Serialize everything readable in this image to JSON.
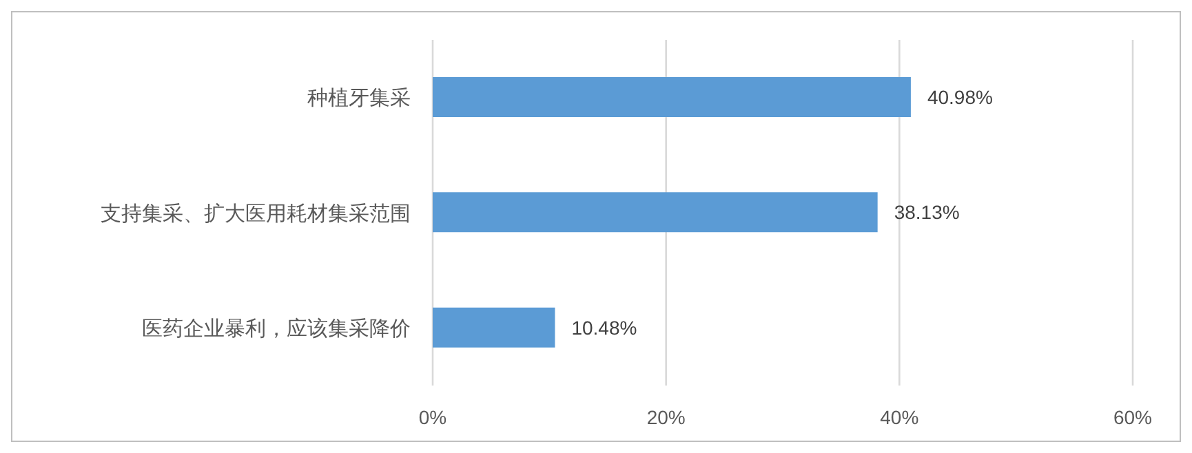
{
  "chart_data": {
    "type": "bar",
    "orientation": "horizontal",
    "categories": [
      "种植牙集采",
      "支持集采、扩大医用耗材集采范围",
      "医药企业暴利，应该集采降价"
    ],
    "values": [
      40.98,
      38.13,
      10.48
    ],
    "value_labels": [
      "40.98%",
      "38.13%",
      "10.48%"
    ],
    "color": "#5b9bd5",
    "xlim": [
      0,
      60
    ],
    "xticks": [
      {
        "value": 0,
        "label": "0%"
      },
      {
        "value": 20,
        "label": "20%"
      },
      {
        "value": 40,
        "label": "40%"
      },
      {
        "value": 60,
        "label": "60%"
      }
    ],
    "grid": "x"
  }
}
